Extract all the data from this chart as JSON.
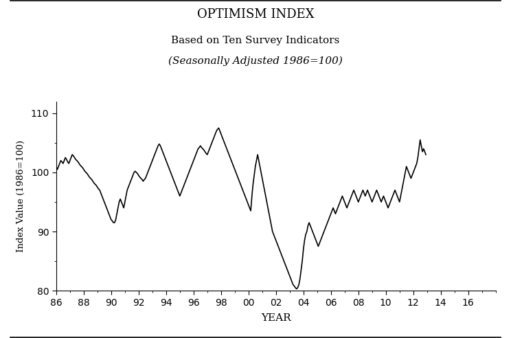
{
  "title": "OPTIMISM INDEX",
  "subtitle1": "Based on Ten Survey Indicators",
  "subtitle2": "(Seasonally Adjusted 1986=100)",
  "xlabel": "YEAR",
  "ylabel": "Index Value (1986=100)",
  "ylim": [
    80,
    112
  ],
  "yticks": [
    80,
    90,
    100,
    110
  ],
  "line_color": "#000000",
  "line_width": 1.2,
  "background_color": "#ffffff",
  "values": [
    101.0,
    100.5,
    101.0,
    101.5,
    102.0,
    101.8,
    101.5,
    102.0,
    102.5,
    102.2,
    101.8,
    101.5,
    102.0,
    102.5,
    103.0,
    102.8,
    102.5,
    102.2,
    102.0,
    101.8,
    101.5,
    101.2,
    101.0,
    100.8,
    100.5,
    100.2,
    100.0,
    99.8,
    99.5,
    99.2,
    99.0,
    98.8,
    98.5,
    98.2,
    98.0,
    97.8,
    97.5,
    97.2,
    97.0,
    96.5,
    96.0,
    95.5,
    95.0,
    94.5,
    94.0,
    93.5,
    93.0,
    92.5,
    92.0,
    91.8,
    91.5,
    91.5,
    92.0,
    93.0,
    94.0,
    95.0,
    95.5,
    95.0,
    94.5,
    94.0,
    95.0,
    96.0,
    97.0,
    97.5,
    98.0,
    98.5,
    99.0,
    99.5,
    100.0,
    100.2,
    100.0,
    99.8,
    99.5,
    99.2,
    99.0,
    98.8,
    98.5,
    98.8,
    99.0,
    99.5,
    100.0,
    100.5,
    101.0,
    101.5,
    102.0,
    102.5,
    103.0,
    103.5,
    104.0,
    104.5,
    104.8,
    104.5,
    104.0,
    103.5,
    103.0,
    102.5,
    102.0,
    101.5,
    101.0,
    100.5,
    100.0,
    99.5,
    99.0,
    98.5,
    98.0,
    97.5,
    97.0,
    96.5,
    96.0,
    96.5,
    97.0,
    97.5,
    98.0,
    98.5,
    99.0,
    99.5,
    100.0,
    100.5,
    101.0,
    101.5,
    102.0,
    102.5,
    103.0,
    103.5,
    104.0,
    104.2,
    104.5,
    104.2,
    104.0,
    103.8,
    103.5,
    103.2,
    103.0,
    103.5,
    104.0,
    104.5,
    105.0,
    105.5,
    106.0,
    106.5,
    107.0,
    107.3,
    107.5,
    107.0,
    106.5,
    106.0,
    105.5,
    105.0,
    104.5,
    104.0,
    103.5,
    103.0,
    102.5,
    102.0,
    101.5,
    101.0,
    100.5,
    100.0,
    99.5,
    99.0,
    98.5,
    98.0,
    97.5,
    97.0,
    96.5,
    96.0,
    95.5,
    95.0,
    94.5,
    94.0,
    93.5,
    96.0,
    98.0,
    99.5,
    101.0,
    102.0,
    103.0,
    102.0,
    101.0,
    100.0,
    99.0,
    98.0,
    97.0,
    96.0,
    95.0,
    94.0,
    93.0,
    92.0,
    91.0,
    90.0,
    89.5,
    89.0,
    88.5,
    88.0,
    87.5,
    87.0,
    86.5,
    86.0,
    85.5,
    85.0,
    84.5,
    84.0,
    83.5,
    83.0,
    82.5,
    82.0,
    81.5,
    81.0,
    80.8,
    80.5,
    80.3,
    80.5,
    81.0,
    82.0,
    83.5,
    85.0,
    87.0,
    88.5,
    89.5,
    90.0,
    91.0,
    91.5,
    91.0,
    90.5,
    90.0,
    89.5,
    89.0,
    88.5,
    88.0,
    87.5,
    88.0,
    88.5,
    89.0,
    89.5,
    90.0,
    90.5,
    91.0,
    91.5,
    92.0,
    92.5,
    93.0,
    93.5,
    94.0,
    93.5,
    93.0,
    93.5,
    94.0,
    94.5,
    95.0,
    95.5,
    96.0,
    95.5,
    95.0,
    94.5,
    94.0,
    94.5,
    95.0,
    95.5,
    96.0,
    96.5,
    97.0,
    96.5,
    96.0,
    95.5,
    95.0,
    95.5,
    96.0,
    96.5,
    97.0,
    96.5,
    96.0,
    96.5,
    97.0,
    96.5,
    96.0,
    95.5,
    95.0,
    95.5,
    96.0,
    96.5,
    97.0,
    96.5,
    96.0,
    95.5,
    95.0,
    95.5,
    96.0,
    95.5,
    95.0,
    94.5,
    94.0,
    94.5,
    95.0,
    95.5,
    96.0,
    96.5,
    97.0,
    96.5,
    96.0,
    95.5,
    95.0,
    96.0,
    97.0,
    98.0,
    99.0,
    100.0,
    101.0,
    100.5,
    100.0,
    99.5,
    99.0,
    99.5,
    100.0,
    100.5,
    101.0,
    101.5,
    102.5,
    104.0,
    105.5,
    104.5,
    103.5,
    104.0,
    103.5,
    103.0
  ]
}
